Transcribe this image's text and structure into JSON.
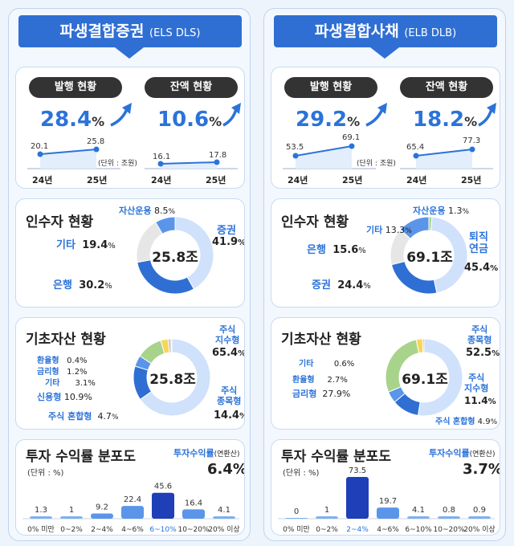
{
  "left": {
    "banner_title": "파생결합증권",
    "banner_sub": "(ELS DLS)",
    "issuance": {
      "label": "발행 현황",
      "change": "28.4",
      "unit": "%",
      "prev": "20.1",
      "curr": "25.8",
      "x_prev": "24년",
      "x_curr": "25년"
    },
    "balance": {
      "label": "잔액 현황",
      "change": "10.6",
      "unit": "%",
      "prev": "16.1",
      "curr": "17.8",
      "x_prev": "24년",
      "x_curr": "25년"
    },
    "unit_note": "(단위 : 조원)",
    "buyers": {
      "title": "인수자 현황",
      "center": "25.8조",
      "labels": [
        {
          "name": "자산운용",
          "pct": "8.5",
          "blue": true
        },
        {
          "name": "증권",
          "pct": "41.9",
          "blue": true
        },
        {
          "name": "기타",
          "pct": "19.4",
          "blue": true
        },
        {
          "name": "은행",
          "pct": "30.2",
          "blue": true
        }
      ]
    },
    "underlying": {
      "title": "기초자산 현황",
      "center": "25.8조",
      "labels": [
        {
          "name": "주식\n지수형",
          "pct": "65.4"
        },
        {
          "name": "환율형",
          "pct": "0.4%"
        },
        {
          "name": "금리형",
          "pct": "1.2%"
        },
        {
          "name": "기타",
          "pct": "3.1%"
        },
        {
          "name": "신용형",
          "pct": "10.9%"
        },
        {
          "name": "주식 혼합형",
          "pct": "4.7"
        },
        {
          "name": "주식\n종목형",
          "pct": "14.4"
        }
      ]
    },
    "returns": {
      "title": "투자 수익률 분포도",
      "rate_label": "투자수익률",
      "rate_paren": "(연환산)",
      "rate": "6.4%",
      "unit": "(단위 : %)"
    }
  },
  "right": {
    "banner_title": "파생결합사채",
    "banner_sub": "(ELB DLB)",
    "issuance": {
      "label": "발행 현황",
      "change": "29.2",
      "unit": "%",
      "prev": "53.5",
      "curr": "69.1",
      "x_prev": "24년",
      "x_curr": "25년"
    },
    "balance": {
      "label": "잔액 현황",
      "change": "18.2",
      "unit": "%",
      "prev": "65.4",
      "curr": "77.3",
      "x_prev": "24년",
      "x_curr": "25년"
    },
    "unit_note": "(단위 : 조원)",
    "buyers": {
      "title": "인수자 현황",
      "center": "69.1조",
      "labels": [
        {
          "name": "자산운용",
          "pct": "1.3"
        },
        {
          "name": "기타",
          "pct": "13.3"
        },
        {
          "name": "퇴직\n연금",
          "pct": "45.4"
        },
        {
          "name": "은행",
          "pct": "15.6"
        },
        {
          "name": "증권",
          "pct": "24.4"
        }
      ]
    },
    "underlying": {
      "title": "기초자산 현황",
      "center": "69.1조",
      "labels": [
        {
          "name": "주식\n종목형",
          "pct": "52.5"
        },
        {
          "name": "기타",
          "pct": "0.6%"
        },
        {
          "name": "환율형",
          "pct": "2.7%"
        },
        {
          "name": "금리형",
          "pct": "27.9%"
        },
        {
          "name": "주식\n지수형",
          "pct": "11.4"
        },
        {
          "name": "주식 혼합형",
          "pct": "4.9"
        }
      ]
    },
    "returns": {
      "title": "투자 수익률 분포도",
      "rate_label": "투자수익률",
      "rate_paren": "(연환산)",
      "rate": "3.7%",
      "unit": "(단위 : %)"
    }
  },
  "chart_data": [
    {
      "type": "bar",
      "panel": "ELS DLS 투자 수익률 분포도",
      "categories": [
        "0% 미만",
        "0~2%",
        "2~4%",
        "4~6%",
        "6~10%",
        "10~20%",
        "20% 이상"
      ],
      "values": [
        1.3,
        1.0,
        9.2,
        22.4,
        45.6,
        16.4,
        4.1
      ],
      "highlight": 4
    },
    {
      "type": "bar",
      "panel": "ELB DLB 투자 수익률 분포도",
      "categories": [
        "0% 미만",
        "0~2%",
        "2~4%",
        "4~6%",
        "6~10%",
        "10~20%",
        "20% 이상"
      ],
      "values": [
        0,
        1.0,
        73.5,
        19.7,
        4.1,
        0.8,
        0.9
      ],
      "highlight": 2
    },
    {
      "type": "pie",
      "panel": "ELS DLS 인수자",
      "slices": [
        {
          "name": "증권",
          "value": 41.9
        },
        {
          "name": "은행",
          "value": 30.2
        },
        {
          "name": "기타",
          "value": 19.4
        },
        {
          "name": "자산운용",
          "value": 8.5
        }
      ]
    },
    {
      "type": "pie",
      "panel": "ELB DLB 인수자",
      "slices": [
        {
          "name": "퇴직연금",
          "value": 45.4
        },
        {
          "name": "증권",
          "value": 24.4
        },
        {
          "name": "은행",
          "value": 15.6
        },
        {
          "name": "기타",
          "value": 13.3
        },
        {
          "name": "자산운용",
          "value": 1.3
        }
      ]
    },
    {
      "type": "pie",
      "panel": "ELS DLS 기초자산",
      "slices": [
        {
          "name": "주식 지수형",
          "value": 65.4
        },
        {
          "name": "주식 종목형",
          "value": 14.4
        },
        {
          "name": "주식 혼합형",
          "value": 4.7
        },
        {
          "name": "신용형",
          "value": 10.9
        },
        {
          "name": "기타",
          "value": 3.1
        },
        {
          "name": "금리형",
          "value": 1.2
        },
        {
          "name": "환율형",
          "value": 0.4
        }
      ]
    },
    {
      "type": "pie",
      "panel": "ELB DLB 기초자산",
      "slices": [
        {
          "name": "주식 종목형",
          "value": 52.5
        },
        {
          "name": "주식 지수형",
          "value": 11.4
        },
        {
          "name": "주식 혼합형",
          "value": 4.9
        },
        {
          "name": "금리형",
          "value": 27.9
        },
        {
          "name": "환율형",
          "value": 2.7
        },
        {
          "name": "기타",
          "value": 0.6
        }
      ]
    }
  ],
  "colors": {
    "primary": "#2f6fd4",
    "mid": "#5a95ea",
    "light": "#cfe1fb",
    "grey": "#e6e6e6",
    "green": "#a8d38a",
    "yellow": "#f7d55a",
    "dark": "#1e3fb8"
  }
}
